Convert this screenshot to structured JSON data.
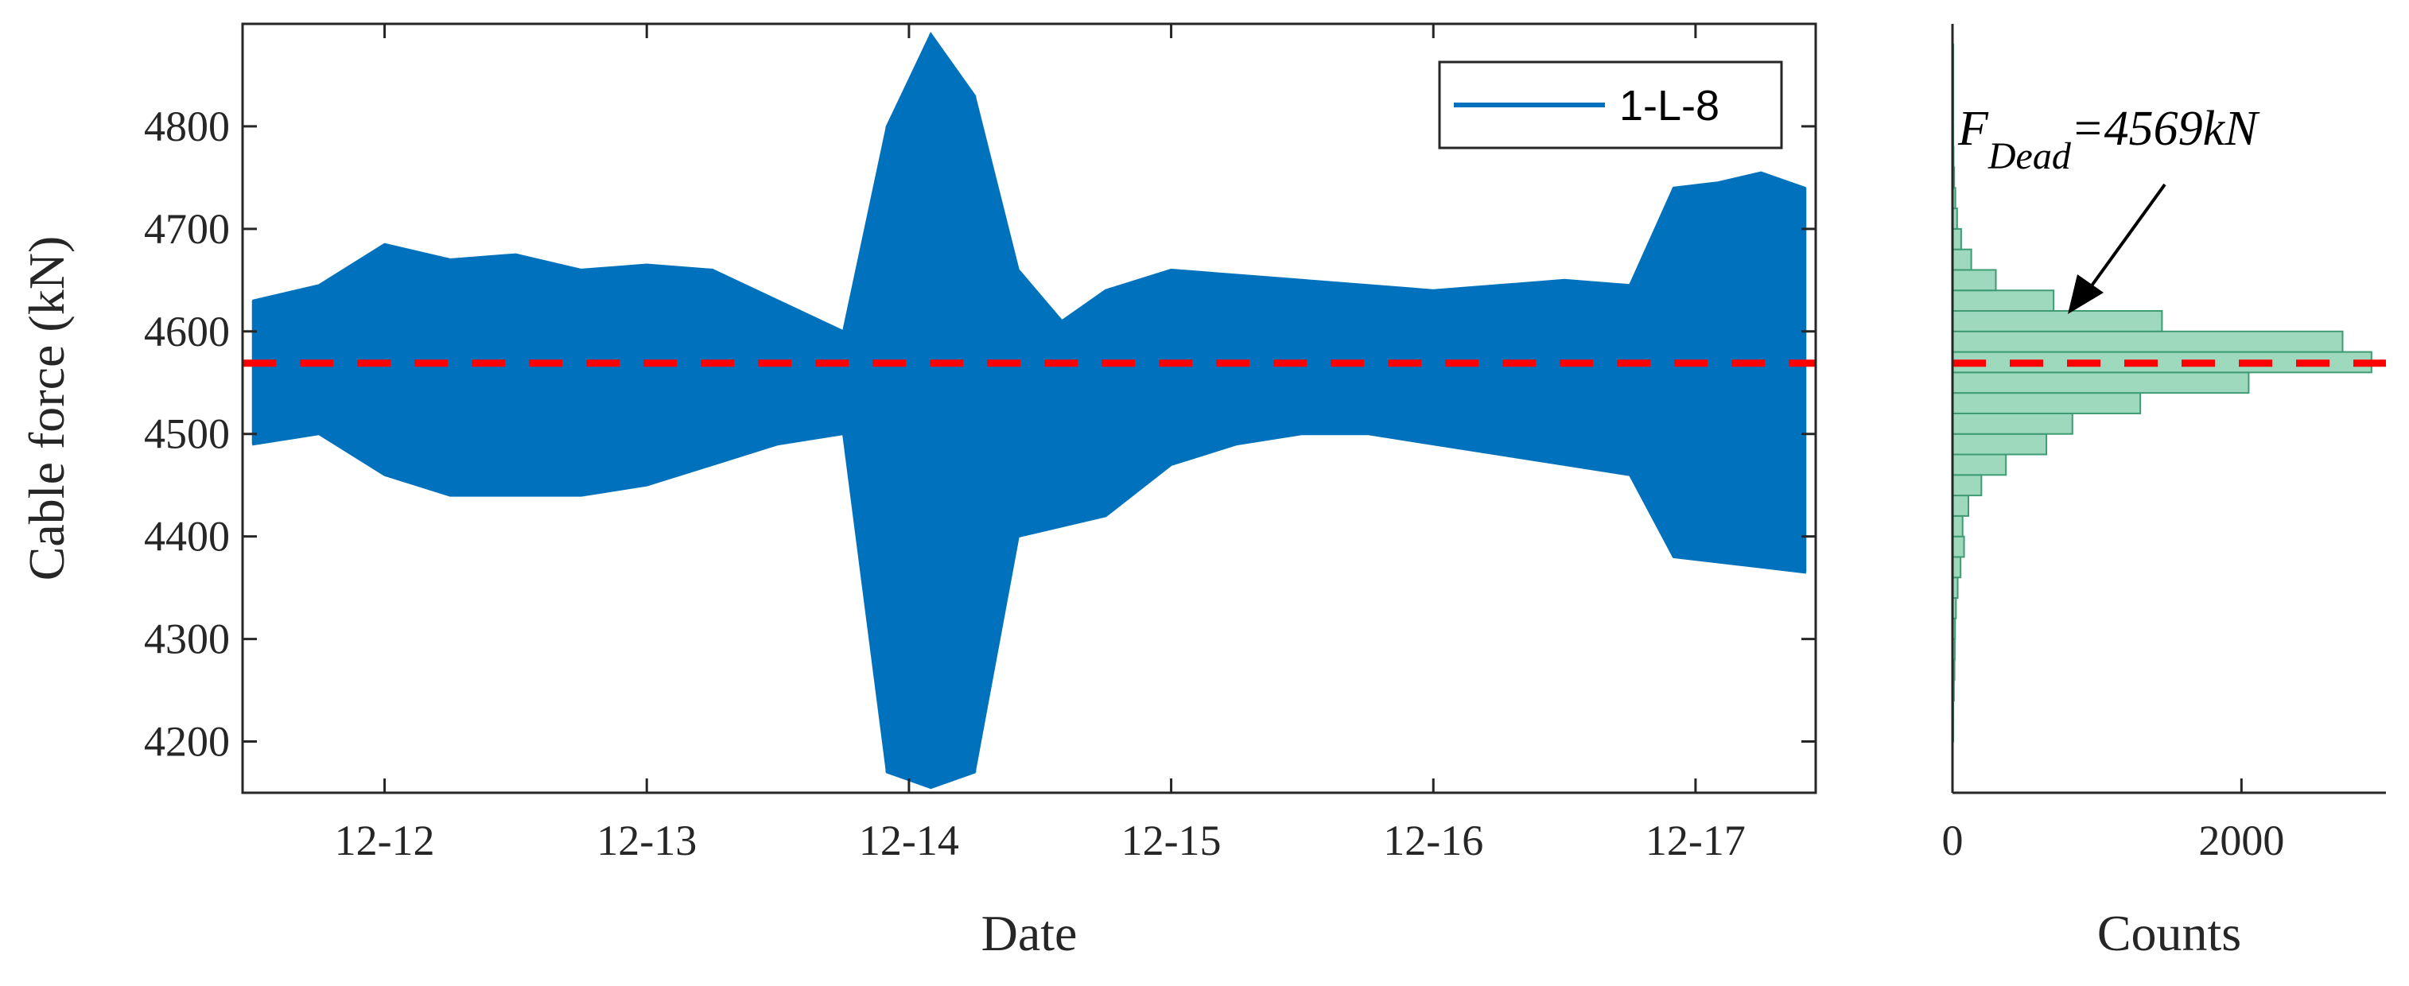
{
  "colors": {
    "series": "#0072BD",
    "dead_load_line": "#FF0000",
    "histogram_fill": "#9ED9BE",
    "histogram_edge": "#3E9B72",
    "axis": "#262626"
  },
  "chart_data": [
    {
      "type": "line",
      "title": "",
      "xlabel": "Date",
      "ylabel": "Cable force (kN)",
      "x_ticks": [
        "12-12",
        "12-13",
        "12-14",
        "12-15",
        "12-16",
        "12-17"
      ],
      "y_ticks": [
        "4200",
        "4300",
        "4400",
        "4500",
        "4600",
        "4700",
        "4800"
      ],
      "xlim": [
        "12-11 11:00",
        "12-17 11:00"
      ],
      "ylim": [
        4150,
        4900
      ],
      "legend": {
        "position": "top-right",
        "entries": [
          "1-L-8"
        ]
      },
      "series": [
        {
          "name": "1-L-8",
          "envelope_note": "dense signal drawn as min/max envelope per time window",
          "x": [
            "12-11 12:00",
            "12-11 18:00",
            "12-12 00:00",
            "12-12 06:00",
            "12-12 12:00",
            "12-12 18:00",
            "12-13 00:00",
            "12-13 06:00",
            "12-13 12:00",
            "12-13 18:00",
            "12-13 22:00",
            "12-14 02:00",
            "12-14 06:00",
            "12-14 10:00",
            "12-14 14:00",
            "12-14 18:00",
            "12-15 00:00",
            "12-15 06:00",
            "12-15 12:00",
            "12-15 18:00",
            "12-16 00:00",
            "12-16 06:00",
            "12-16 12:00",
            "12-16 18:00",
            "12-16 22:00",
            "12-17 02:00",
            "12-17 06:00",
            "12-17 10:00"
          ],
          "y_max": [
            4630,
            4645,
            4685,
            4670,
            4675,
            4660,
            4665,
            4660,
            4630,
            4600,
            4800,
            4890,
            4830,
            4660,
            4610,
            4640,
            4660,
            4655,
            4650,
            4645,
            4640,
            4645,
            4650,
            4645,
            4740,
            4745,
            4755,
            4740
          ],
          "y_min": [
            4490,
            4500,
            4460,
            4440,
            4440,
            4440,
            4450,
            4470,
            4490,
            4500,
            4170,
            4155,
            4170,
            4400,
            4410,
            4420,
            4470,
            4490,
            4500,
            4500,
            4490,
            4480,
            4470,
            4460,
            4380,
            4375,
            4370,
            4365
          ]
        }
      ],
      "reference_line": {
        "style": "dashed",
        "y": 4569
      }
    },
    {
      "type": "bar",
      "orientation": "horizontal",
      "title": "",
      "xlabel": "Counts",
      "ylabel": "",
      "x_ticks": [
        "0",
        "2000"
      ],
      "xlim": [
        0,
        3000
      ],
      "ylim": [
        4150,
        4900
      ],
      "bin_edges": [
        4200,
        4220,
        4240,
        4260,
        4280,
        4300,
        4320,
        4340,
        4360,
        4380,
        4400,
        4420,
        4440,
        4460,
        4480,
        4500,
        4520,
        4540,
        4560,
        4580,
        4600,
        4620,
        4640,
        4660,
        4680,
        4700,
        4720,
        4740,
        4760,
        4780,
        4800,
        4820,
        4840,
        4860,
        4880
      ],
      "values": [
        4,
        6,
        10,
        14,
        16,
        18,
        24,
        36,
        56,
        80,
        70,
        110,
        200,
        370,
        650,
        830,
        1300,
        2050,
        2900,
        2700,
        1450,
        700,
        300,
        130,
        60,
        32,
        20,
        12,
        8,
        6,
        5,
        4,
        3,
        2
      ],
      "reference_line": {
        "style": "dashed",
        "y": 4569
      },
      "annotation": {
        "label": "F",
        "subscript": "Dead",
        "value_text": "=4569kN"
      }
    }
  ]
}
